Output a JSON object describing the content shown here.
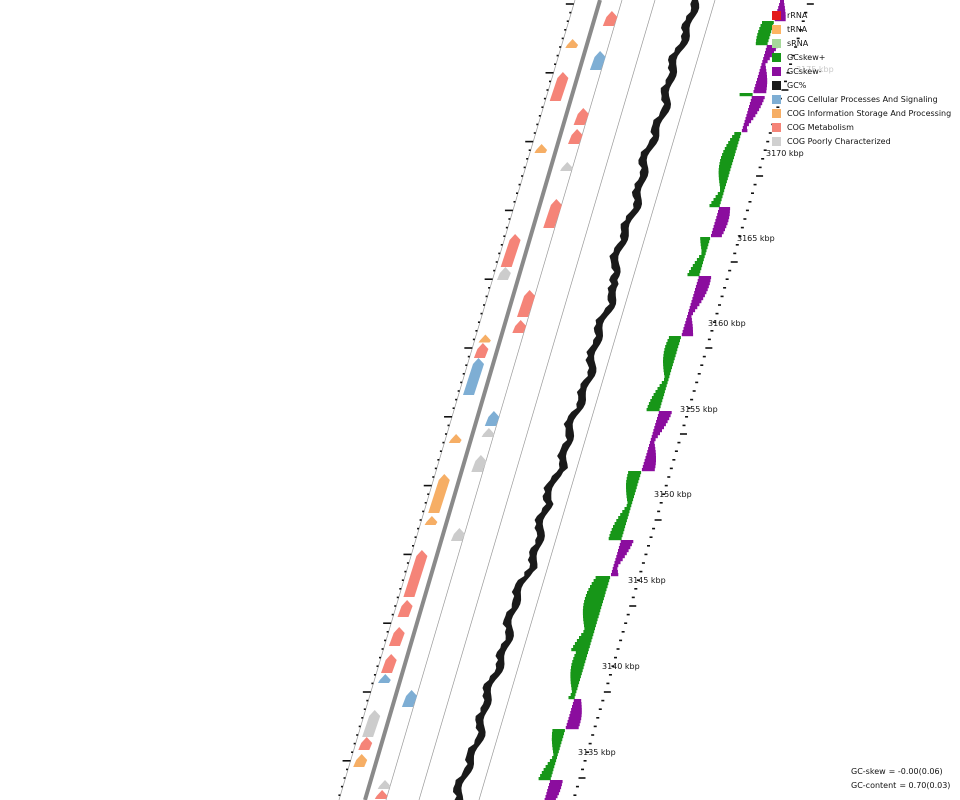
{
  "legend": [
    {
      "label": "rRNA",
      "color": "#e31a1c"
    },
    {
      "label": "tRNA",
      "color": "#fdb462"
    },
    {
      "label": "sRNA",
      "color": "#a6d89a"
    },
    {
      "label": "GCskew+",
      "color": "#179618"
    },
    {
      "label": "GCskew-",
      "color": "#8b0d9e"
    },
    {
      "label": "GC%",
      "color": "#1a1a1a"
    },
    {
      "label": "COG Cellular Processes And Signaling",
      "color": "#7eaed4"
    },
    {
      "label": "COG Information Storage And Processing",
      "color": "#f6ae65"
    },
    {
      "label": "COG Metabolism",
      "color": "#f58478"
    },
    {
      "label": "COG Poorly Characterized",
      "color": "#d0d0d0"
    }
  ],
  "axis": {
    "ticks": [
      "3135 kbp",
      "3140 kbp",
      "3145 kbp",
      "3150 kbp",
      "3155 kbp",
      "3160 kbp",
      "3165 kbp",
      "3170 kbp"
    ],
    "faded_tick": "3175 kbp"
  },
  "stats": {
    "gc_skew_label": "GC-skew",
    "gc_skew_value": "= -0.00(0.06)",
    "gc_content_label": "GC-content",
    "gc_content_value": "= 0.70(0.03)"
  },
  "feature_colors": {
    "cellular": "#7eaed4",
    "information": "#f6ae65",
    "metabolism": "#f58478",
    "poorly": "#cccccc",
    "backbone": "#888888",
    "gc": "#1a1a1a",
    "skew_pos": "#179618",
    "skew_neg": "#8b0d9e"
  }
}
